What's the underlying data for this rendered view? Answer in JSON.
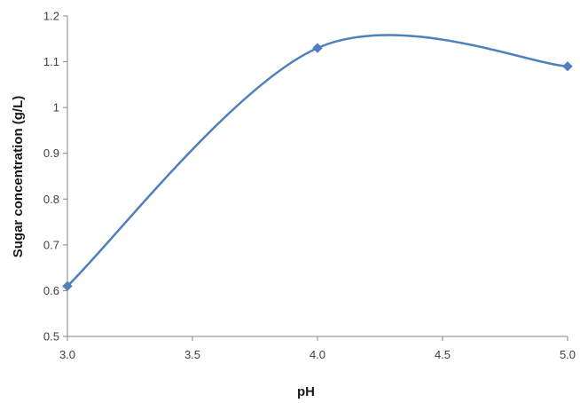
{
  "chart_data": {
    "type": "line",
    "title": "",
    "xlabel": "pH",
    "ylabel": "Sugar concentration (g/L)",
    "xlim": [
      3.0,
      5.0
    ],
    "ylim": [
      0.5,
      1.2
    ],
    "grid": false,
    "legend": "none",
    "smooth": true,
    "x_ticks": [
      "3.0",
      "3.5",
      "4.0",
      "4.5",
      "5.0"
    ],
    "y_ticks": [
      "0.5",
      "0.6",
      "0.7",
      "0.8",
      "0.9",
      "1",
      "1.1",
      "1.2"
    ],
    "series": [
      {
        "x": [
          3.0,
          4.0,
          5.0
        ],
        "y": [
          0.61,
          1.13,
          1.09
        ],
        "color": "#4f81bd",
        "marker": "diamond"
      }
    ]
  }
}
